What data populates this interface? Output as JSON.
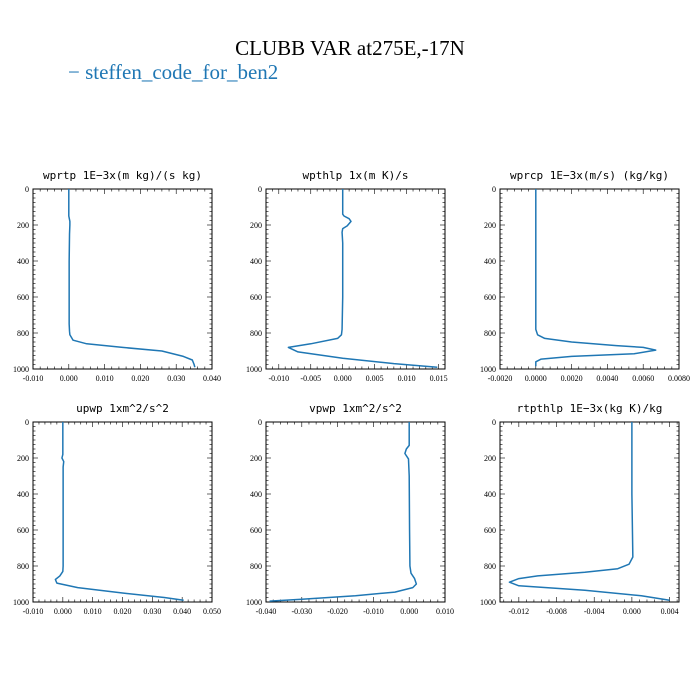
{
  "title": "CLUBB VAR at275E,-17N",
  "legend": {
    "line_symbol": "−",
    "label": "steffen_code_for_ben2",
    "color": "#1f77b4"
  },
  "chart_data": [
    {
      "type": "line",
      "title": "wprtp   1E−3x(m kg)/(s kg)",
      "xlim": [
        -0.01,
        0.04
      ],
      "xticks": [
        -0.01,
        0.0,
        0.01,
        0.02,
        0.03,
        0.04
      ],
      "xtick_labels": [
        "-0.010",
        "0.000",
        "0.010",
        "0.020",
        "0.030",
        "0.040"
      ],
      "ylim": [
        0,
        1000
      ],
      "yticks": [
        0,
        200,
        400,
        600,
        800,
        1000
      ],
      "ytick_labels": [
        "0",
        "200",
        "400",
        "600",
        "800",
        "1000"
      ],
      "y_inverted": true,
      "series": [
        {
          "color": "#1f77b4",
          "x": [
            0.0,
            0.0,
            0.0003,
            0.0003,
            0.0002,
            0.0001,
            0.0001,
            0.0001,
            0.0002,
            0.0003,
            0.0012,
            0.005,
            0.015,
            0.026,
            0.032,
            0.0345,
            0.035,
            0.0352
          ],
          "y": [
            0,
            150,
            180,
            200,
            250,
            400,
            600,
            750,
            790,
            810,
            840,
            860,
            880,
            900,
            930,
            950,
            975,
            990
          ]
        }
      ]
    },
    {
      "type": "line",
      "title": "wpthlp  1x(m K)/s",
      "xlim": [
        -0.012,
        0.016
      ],
      "xticks": [
        -0.01,
        -0.005,
        0.0,
        0.005,
        0.01,
        0.015
      ],
      "xtick_labels": [
        "-0.010",
        "-0.005",
        "0.000",
        "0.005",
        "0.010",
        "0.015"
      ],
      "ylim": [
        0,
        1000
      ],
      "yticks": [
        0,
        200,
        400,
        600,
        800,
        1000
      ],
      "ytick_labels": [
        "0",
        "200",
        "400",
        "600",
        "800",
        "1000"
      ],
      "y_inverted": true,
      "series": [
        {
          "color": "#1f77b4",
          "x": [
            0.0,
            0.0,
            0.0002,
            0.001,
            0.0013,
            0.0007,
            0.0,
            -0.0001,
            0.0,
            0.0,
            -0.0001,
            -0.0002,
            -0.0008,
            -0.005,
            -0.0085,
            -0.007,
            0.0,
            0.008,
            0.0148
          ],
          "y": [
            0,
            140,
            150,
            165,
            180,
            205,
            220,
            240,
            300,
            600,
            780,
            810,
            830,
            860,
            880,
            905,
            940,
            970,
            990
          ]
        }
      ]
    },
    {
      "type": "line",
      "title": "wprcp  1E−3x(m/s) (kg/kg)",
      "xlim": [
        -0.002,
        0.008
      ],
      "xticks": [
        -0.002,
        0.0,
        0.002,
        0.004,
        0.006,
        0.008
      ],
      "xtick_labels": [
        "-0.0020",
        "0.0000",
        "0.0020",
        "0.0040",
        "0.0060",
        "0.0080"
      ],
      "ylim": [
        0,
        1000
      ],
      "yticks": [
        0,
        200,
        400,
        600,
        800,
        1000
      ],
      "ytick_labels": [
        "0",
        "200",
        "400",
        "600",
        "800",
        "1000"
      ],
      "y_inverted": true,
      "series": [
        {
          "color": "#1f77b4",
          "x": [
            0.0,
            0.0,
            0.0,
            0.0,
            0.0001,
            0.0005,
            0.002,
            0.0045,
            0.006,
            0.0067,
            0.0055,
            0.002,
            0.0003,
            0.0,
            0.0
          ],
          "y": [
            0,
            400,
            700,
            780,
            810,
            830,
            850,
            870,
            880,
            895,
            915,
            930,
            945,
            960,
            985
          ]
        }
      ]
    },
    {
      "type": "line",
      "title": "upwp   1xm^2/s^2",
      "xlim": [
        -0.01,
        0.05
      ],
      "xticks": [
        -0.01,
        0.0,
        0.01,
        0.02,
        0.03,
        0.04,
        0.05
      ],
      "xtick_labels": [
        "-0.010",
        "0.000",
        "0.010",
        "0.020",
        "0.030",
        "0.040",
        "0.050"
      ],
      "ylim": [
        0,
        1000
      ],
      "yticks": [
        0,
        200,
        400,
        600,
        800,
        1000
      ],
      "ytick_labels": [
        "0",
        "200",
        "400",
        "600",
        "800",
        "1000"
      ],
      "y_inverted": true,
      "series": [
        {
          "color": "#1f77b4",
          "x": [
            0.0,
            0.0,
            -0.0003,
            0.0003,
            0.0001,
            0.0001,
            0.0001,
            0.0,
            -0.001,
            -0.0025,
            -0.002,
            0.005,
            0.02,
            0.034,
            0.0405
          ],
          "y": [
            0,
            180,
            200,
            220,
            250,
            600,
            800,
            830,
            855,
            875,
            895,
            920,
            950,
            975,
            990
          ]
        }
      ]
    },
    {
      "type": "line",
      "title": "vpwp   1xm^2/s^2",
      "xlim": [
        -0.04,
        0.01
      ],
      "xticks": [
        -0.04,
        -0.03,
        -0.02,
        -0.01,
        0.0,
        0.01
      ],
      "xtick_labels": [
        "-0.040",
        "-0.030",
        "-0.020",
        "-0.010",
        "0.000",
        "0.010"
      ],
      "ylim": [
        0,
        1000
      ],
      "yticks": [
        0,
        200,
        400,
        600,
        800,
        1000
      ],
      "ytick_labels": [
        "0",
        "200",
        "400",
        "600",
        "800",
        "1000"
      ],
      "y_inverted": true,
      "series": [
        {
          "color": "#1f77b4",
          "x": [
            0.0,
            0.0,
            -0.0008,
            -0.0012,
            -0.0002,
            0.0,
            0.0001,
            0.0002,
            0.0005,
            0.0015,
            0.002,
            0.001,
            -0.004,
            -0.015,
            -0.03,
            -0.039
          ],
          "y": [
            0,
            130,
            150,
            175,
            205,
            300,
            600,
            800,
            840,
            870,
            900,
            920,
            945,
            965,
            985,
            995
          ]
        }
      ]
    },
    {
      "type": "line",
      "title": "rtpthlp  1E−3x(kg K)/kg",
      "xlim": [
        -0.014,
        0.005
      ],
      "xticks": [
        -0.012,
        -0.008,
        -0.004,
        0.0,
        0.004
      ],
      "xtick_labels": [
        "-0.012",
        "-0.008",
        "-0.004",
        "0.000",
        "0.004"
      ],
      "ylim": [
        0,
        1000
      ],
      "yticks": [
        0,
        200,
        400,
        600,
        800,
        1000
      ],
      "ytick_labels": [
        "0",
        "200",
        "400",
        "600",
        "800",
        "1000"
      ],
      "y_inverted": true,
      "series": [
        {
          "color": "#1f77b4",
          "x": [
            0.0,
            0.0,
            0.0,
            0.0001,
            -0.0003,
            -0.0015,
            -0.005,
            -0.01,
            -0.012,
            -0.013,
            -0.012,
            -0.005,
            0.001,
            0.004
          ],
          "y": [
            0,
            200,
            400,
            750,
            790,
            815,
            835,
            855,
            870,
            890,
            910,
            935,
            965,
            990
          ]
        }
      ]
    }
  ]
}
